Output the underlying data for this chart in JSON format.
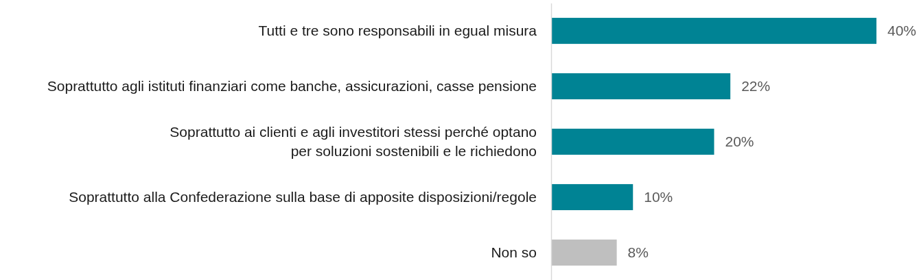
{
  "chart_data": {
    "type": "bar",
    "orientation": "horizontal",
    "categories": [
      "Tutti e tre sono responsabili in egual misura",
      "Soprattutto agli istituti finanziari come banche, assicurazioni, casse pensione",
      "Soprattutto ai clienti e agli investitori stessi perché optano\nper soluzioni sostenibili e le richiedono",
      "Soprattutto alla Confederazione sulla base di apposite disposizioni/regole",
      "Non so"
    ],
    "values": [
      40,
      22,
      20,
      10,
      8
    ],
    "colors": [
      "#008394",
      "#008394",
      "#008394",
      "#008394",
      "#bfbfbf"
    ],
    "value_labels": [
      "40%",
      "22%",
      "20%",
      "10%",
      "8%"
    ]
  }
}
